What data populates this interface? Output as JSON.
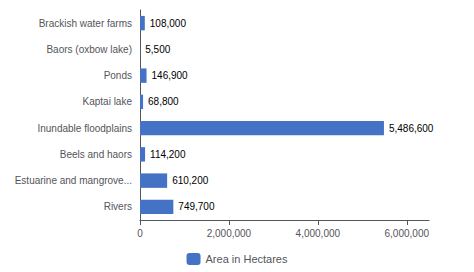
{
  "chart_data": {
    "type": "bar",
    "orientation": "horizontal",
    "categories": [
      "Rivers",
      "Estuarine and mangrove...",
      "Beels and haors",
      "Inundable floodplains",
      "Kaptai lake",
      "Ponds",
      "Baors (oxbow lake)",
      "Brackish water farms"
    ],
    "series": [
      {
        "name": "Area in Hectares",
        "color": "#4472C4",
        "values": [
          749700,
          610200,
          114200,
          5486600,
          68800,
          146900,
          5500,
          108000
        ],
        "value_labels": [
          "749,700",
          "610,200",
          "114,200",
          "5,486,600",
          "68,800",
          "146,900",
          "5,500",
          "108,000"
        ]
      }
    ],
    "xlim": [
      0,
      6500000
    ],
    "xticks": [
      0,
      {
        "value": 2000000,
        "label": "2,000,000"
      },
      {
        "value": 4000000,
        "label": "4,000,000"
      },
      {
        "value": 6000000,
        "label": "6,000,000"
      }
    ],
    "data_labels": true,
    "grid": false,
    "legend": "bottom"
  }
}
